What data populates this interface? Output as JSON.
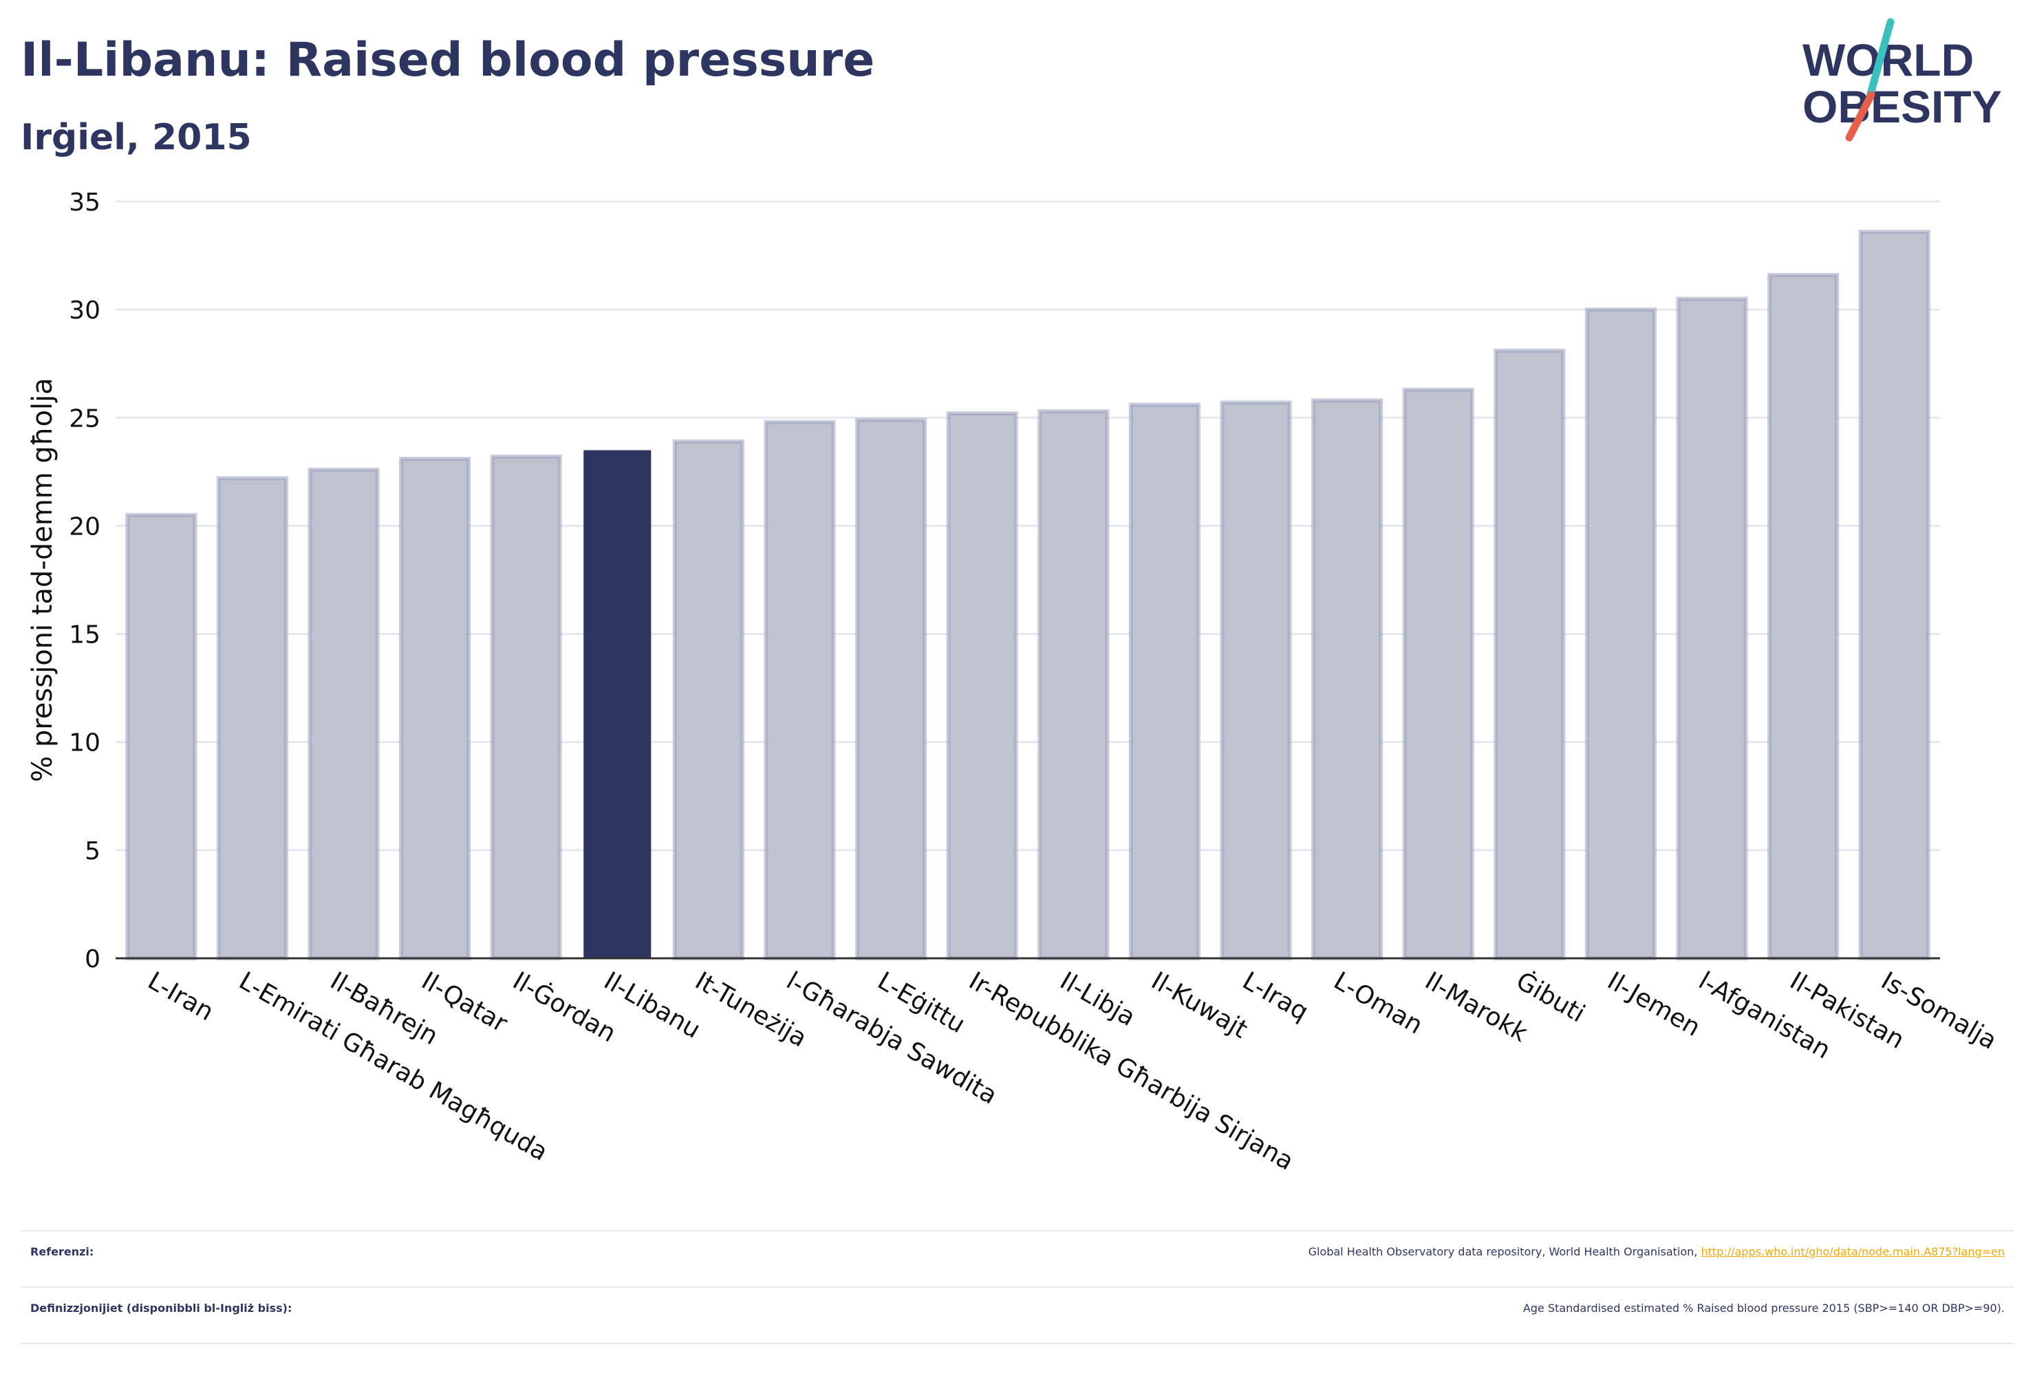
{
  "header": {
    "title": "Il-Libanu: Raised blood pressure",
    "subtitle": "Irġiel, 2015"
  },
  "logo": {
    "line1": "WORLD",
    "line2": "OBESITY",
    "colors": {
      "text": "#2d3560",
      "slash_teal": "#3bbfbf",
      "slash_red": "#e8604c"
    }
  },
  "chart_data": {
    "type": "bar",
    "title": "Il-Libanu: Raised blood pressure",
    "subtitle": "Irġiel, 2015",
    "ylabel": "% pressjoni tad-demm għolja",
    "xlabel": "",
    "ylim": [
      0,
      35
    ],
    "yticks": [
      0,
      5,
      10,
      15,
      20,
      25,
      30,
      35
    ],
    "grid": true,
    "highlight": "Il-Libanu",
    "colors": {
      "bar": "#bfc3d0",
      "bar_edge": "#9aa1bd",
      "highlight": "#2d3560",
      "grid": "#e6e8f0",
      "axis": "#333333"
    },
    "categories": [
      "L-Iran",
      "L-Emirati Għarab Magħquda",
      "Il-Baħrejn",
      "Il-Qatar",
      "Il-Ġordan",
      "Il-Libanu",
      "It-Tuneżija",
      "l-Għarabja Sawdita",
      "L-Eġittu",
      "Ir-Repubblika Għarbija Sirjana",
      "Il-Libja",
      "Il-Kuwajt",
      "L-Iraq",
      "L-Oman",
      "Il-Marokk",
      "Ġibuti",
      "Il-Jemen",
      "l-Afganistan",
      "Il-Pakistan",
      "Is-Somalja"
    ],
    "values": [
      20.5,
      22.2,
      22.6,
      23.1,
      23.2,
      23.5,
      23.9,
      24.8,
      24.9,
      25.2,
      25.3,
      25.6,
      25.7,
      25.8,
      26.3,
      28.1,
      30.0,
      30.5,
      31.6,
      33.6
    ]
  },
  "footer": {
    "references_label": "Referenzi:",
    "references_text": "Global Health Observatory data repository, World Health Organisation,",
    "references_link": "http://apps.who.int/gho/data/node.main.A875?lang=en",
    "definitions_label": "Definizzjonijiet (disponibbli bl-Ingliż biss):",
    "definitions_text": "Age Standardised estimated % Raised blood pressure 2015 (SBP>=140 OR DBP>=90)."
  }
}
